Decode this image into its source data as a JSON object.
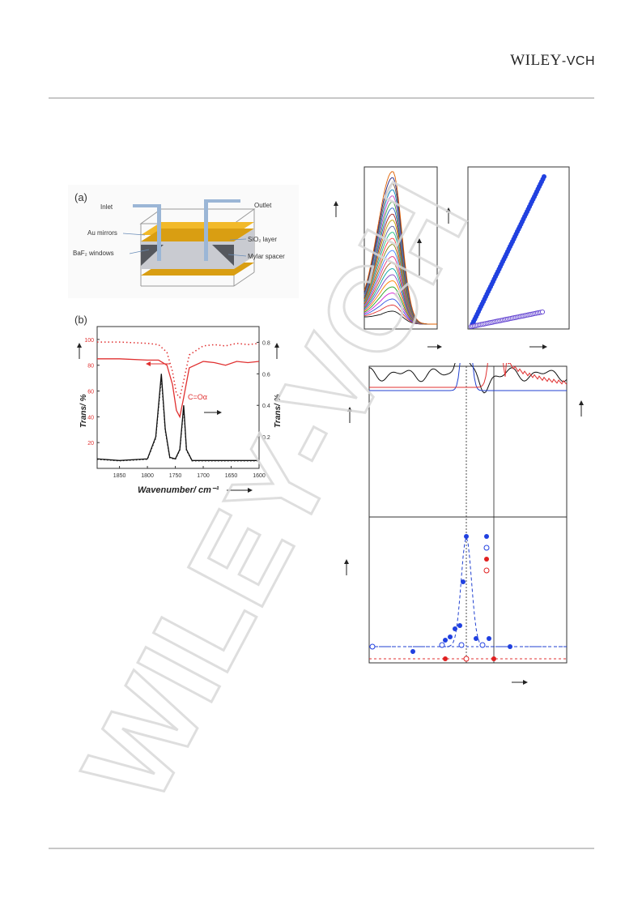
{
  "header": {
    "publisher_main": "WILEY",
    "publisher_suffix": "-VCH"
  },
  "figure_a": {
    "panel_label": "(a)",
    "inlet": "Inlet",
    "outlet": "Outlet",
    "au_mirrors": "Au mirrors",
    "baf2_windows": "BaF₂ windows",
    "sio2_layer": "SiO₂ layer",
    "mylar_spacer": "Mylar spacer"
  },
  "figure_b": {
    "panel_label": "(b)",
    "ylabel_left": "Trans/ %",
    "ylabel_right": "Trans/ %",
    "xlabel": "Wavenumber/ cm⁻¹",
    "annotation": "C=Oα",
    "left_ticks": [
      "100",
      "80",
      "60",
      "40",
      "20"
    ],
    "right_ticks": [
      "0.8",
      "0.6",
      "0.4",
      "0.2"
    ],
    "x_ticks": [
      "1850",
      "1800",
      "1750",
      "1700",
      "1650",
      "1600"
    ]
  },
  "watermark": "WILEY-VCH",
  "chart_data": [
    {
      "type": "line",
      "title": "",
      "xlabel": "Wavenumber/ cm⁻¹",
      "ylabel": "Trans/ %",
      "xlim": [
        1890,
        1600
      ],
      "series": [
        {
          "name": "",
          "x": [
            1890,
            1850,
            1800,
            1780,
            1765,
            1755,
            1748,
            1742,
            1735,
            1725,
            1700,
            1680,
            1660,
            1640,
            1620,
            1600
          ],
          "y": [
            85,
            85,
            84,
            84,
            80,
            65,
            45,
            40,
            55,
            78,
            83,
            82,
            80,
            83,
            82,
            83
          ]
        },
        {
          "name": "",
          "x": [
            1890,
            1850,
            1800,
            1780,
            1765,
            1755,
            1748,
            1742,
            1735,
            1725,
            1700,
            1680,
            1660,
            1640,
            1620,
            1600
          ],
          "y": [
            98,
            98,
            97,
            96,
            90,
            75,
            58,
            55,
            68,
            88,
            95,
            96,
            95,
            97,
            96,
            97
          ]
        }
      ]
    },
    {
      "type": "line",
      "title": "",
      "xlabel": "Wavenumber/ cm⁻¹",
      "ylabel": "Trans/ %",
      "xlim": [
        1890,
        1600
      ],
      "series": [
        {
          "name": "",
          "x": [
            1890,
            1850,
            1800,
            1785,
            1775,
            1768,
            1760,
            1750,
            1742,
            1735,
            1730,
            1720,
            1700,
            1650,
            1600
          ],
          "y": [
            0.06,
            0.05,
            0.06,
            0.2,
            0.6,
            0.25,
            0.07,
            0.06,
            0.12,
            0.4,
            0.12,
            0.05,
            0.05,
            0.05,
            0.05
          ]
        }
      ]
    }
  ]
}
